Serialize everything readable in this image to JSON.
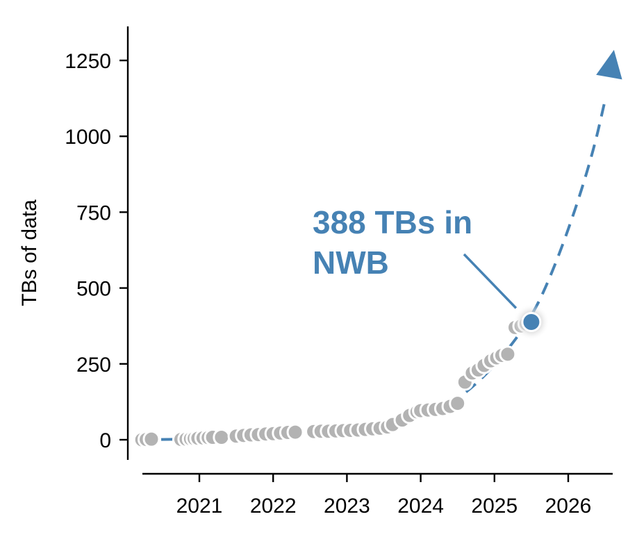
{
  "chart_data": {
    "type": "scatter",
    "title": "",
    "xlabel": "",
    "ylabel": "TBs of data",
    "xlim": [
      2020.2,
      2026.6
    ],
    "ylim": [
      -60,
      1360
    ],
    "xticks": [
      2021,
      2022,
      2023,
      2024,
      2025,
      2026
    ],
    "yticks": [
      0,
      250,
      500,
      750,
      1000,
      1250
    ],
    "grid": false,
    "legend": "none",
    "colors": {
      "points": "#b3b3b3",
      "accent": "#4682b4",
      "axis": "#000000"
    },
    "series": [
      {
        "points": [
          [
            2020.22,
            0
          ],
          [
            2020.28,
            1
          ],
          [
            2020.35,
            2
          ],
          [
            2020.75,
            1
          ],
          [
            2020.82,
            2
          ],
          [
            2020.88,
            3
          ],
          [
            2020.93,
            4
          ],
          [
            2020.98,
            5
          ],
          [
            2021.05,
            6
          ],
          [
            2021.12,
            7
          ],
          [
            2021.18,
            8
          ],
          [
            2021.3,
            8
          ],
          [
            2021.5,
            12
          ],
          [
            2021.6,
            14
          ],
          [
            2021.7,
            16
          ],
          [
            2021.8,
            17
          ],
          [
            2021.9,
            19
          ],
          [
            2022.0,
            20
          ],
          [
            2022.1,
            22
          ],
          [
            2022.2,
            24
          ],
          [
            2022.3,
            25
          ],
          [
            2022.55,
            27
          ],
          [
            2022.65,
            28
          ],
          [
            2022.75,
            28
          ],
          [
            2022.85,
            29
          ],
          [
            2022.95,
            30
          ],
          [
            2023.05,
            31
          ],
          [
            2023.15,
            32
          ],
          [
            2023.25,
            34
          ],
          [
            2023.35,
            36
          ],
          [
            2023.45,
            38
          ],
          [
            2023.55,
            42
          ],
          [
            2023.62,
            50
          ],
          [
            2023.75,
            65
          ],
          [
            2023.85,
            80
          ],
          [
            2023.95,
            92
          ],
          [
            2024.0,
            96
          ],
          [
            2024.1,
            98
          ],
          [
            2024.2,
            100
          ],
          [
            2024.3,
            103
          ],
          [
            2024.4,
            110
          ],
          [
            2024.5,
            120
          ],
          [
            2024.6,
            190
          ],
          [
            2024.7,
            220
          ],
          [
            2024.78,
            230
          ],
          [
            2024.86,
            245
          ],
          [
            2024.95,
            260
          ],
          [
            2025.03,
            270
          ],
          [
            2025.1,
            278
          ],
          [
            2025.18,
            282
          ],
          [
            2025.28,
            370
          ],
          [
            2025.36,
            375
          ],
          [
            2025.43,
            382
          ]
        ]
      }
    ],
    "highlight": {
      "x": 2025.5,
      "y": 388,
      "label": "388 TBs in NWB"
    },
    "trend": {
      "points": [
        [
          2020.2,
          0
        ],
        [
          2020.6,
          1
        ],
        [
          2021.0,
          4
        ],
        [
          2021.5,
          9
        ],
        [
          2022.0,
          16
        ],
        [
          2022.5,
          24
        ],
        [
          2023.0,
          33
        ],
        [
          2023.5,
          48
        ],
        [
          2024.0,
          78
        ],
        [
          2024.5,
          130
        ],
        [
          2025.0,
          240
        ],
        [
          2025.5,
          400
        ],
        [
          2025.8,
          560
        ],
        [
          2026.1,
          760
        ],
        [
          2026.35,
          960
        ],
        [
          2026.5,
          1120
        ]
      ],
      "arrow_tip": [
        2026.62,
        1285
      ]
    }
  }
}
